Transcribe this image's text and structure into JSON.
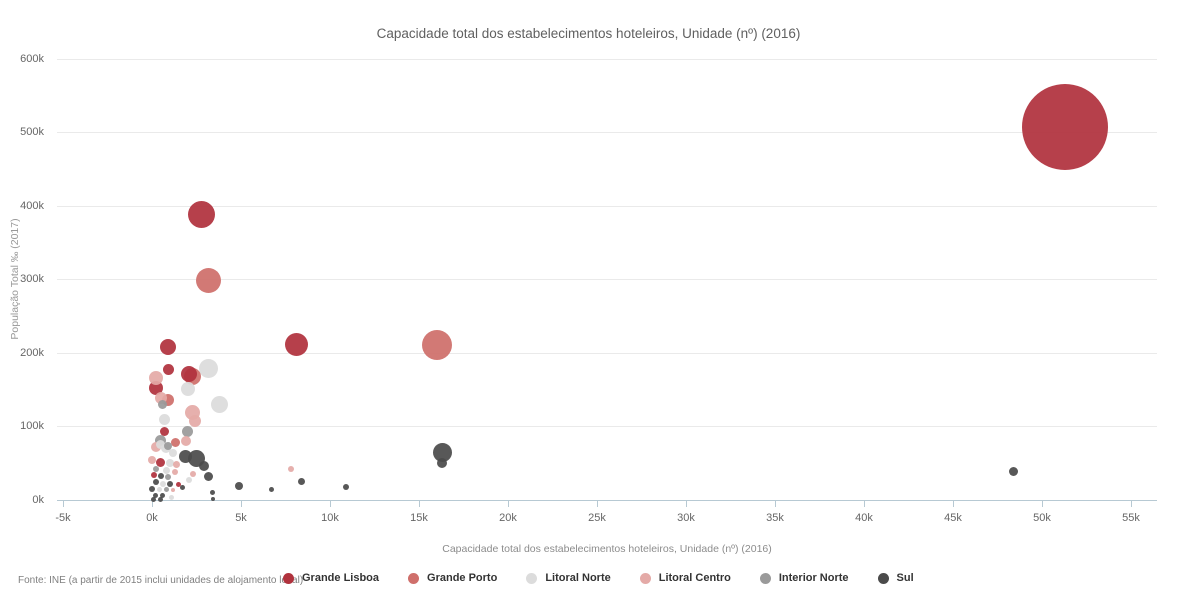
{
  "title": "Capacidade total dos estabelecimentos hoteleiros, Unidade (nº) (2016)",
  "source": "Fonte: INE (a partir de 2015 inclui unidades de alojamento local)",
  "axes": {
    "x": {
      "title": "Capacidade total dos estabelecimentos hoteleiros, Unidade (nº) (2016)",
      "tick_values": [
        -5000,
        0,
        5000,
        10000,
        15000,
        20000,
        25000,
        30000,
        35000,
        40000,
        45000,
        50000,
        55000
      ],
      "tick_labels": [
        "-5k",
        "0k",
        "5k",
        "10k",
        "15k",
        "20k",
        "25k",
        "30k",
        "35k",
        "40k",
        "45k",
        "50k",
        "55k"
      ]
    },
    "y": {
      "title": "População Total ‰ (2017)",
      "tick_values": [
        0,
        100000,
        200000,
        300000,
        400000,
        500000,
        600000
      ],
      "tick_labels": [
        "0k",
        "100k",
        "200k",
        "300k",
        "400k",
        "500k",
        "600k"
      ]
    }
  },
  "legend": [
    {
      "label": "Grande Lisboa",
      "color": "#b0323d"
    },
    {
      "label": "Grande Porto",
      "color": "#cf6f6b"
    },
    {
      "label": "Litoral Norte",
      "color": "#dcdcdc"
    },
    {
      "label": "Litoral Centro",
      "color": "#e4aaa7"
    },
    {
      "label": "Interior Norte",
      "color": "#9a9a9a"
    },
    {
      "label": "Sul",
      "color": "#4b4b4b"
    }
  ],
  "chart_data": {
    "type": "scatter",
    "title": "Capacidade total dos estabelecimentos hoteleiros, Unidade (nº) (2016)",
    "xlabel": "Capacidade total dos estabelecimentos hoteleiros, Unidade (nº) (2016)",
    "ylabel": "População Total ‰ (2017)",
    "xlim": [
      -5000,
      56500
    ],
    "ylim": [
      0,
      600000
    ],
    "grid": "horizontal-only",
    "legend_position": "bottom",
    "series": [
      {
        "name": "Grande Lisboa",
        "color": "#b0323d",
        "points": [
          [
            51300,
            507000,
            43
          ],
          [
            2800,
            388000,
            13.5
          ],
          [
            8100,
            211000,
            11.5
          ],
          [
            900,
            208000,
            8
          ],
          [
            900,
            177000,
            5.5
          ],
          [
            2100,
            171000,
            8
          ],
          [
            200,
            152000,
            7
          ],
          [
            700,
            92000,
            4.5
          ],
          [
            500,
            51000,
            4.5
          ],
          [
            100,
            33000,
            3
          ],
          [
            1500,
            20000,
            2.5
          ]
        ]
      },
      {
        "name": "Grande Porto",
        "color": "#cf6f6b",
        "points": [
          [
            3200,
            298000,
            12.5
          ],
          [
            16000,
            210000,
            15
          ],
          [
            2300,
            167000,
            8.5
          ],
          [
            900,
            135000,
            6
          ],
          [
            1300,
            78000,
            4.5
          ]
        ]
      },
      {
        "name": "Litoral Norte",
        "color": "#dcdcdc",
        "points": [
          [
            3200,
            178000,
            9.5
          ],
          [
            2000,
            151000,
            7
          ],
          [
            3800,
            129000,
            8.5
          ],
          [
            700,
            109000,
            5.5
          ],
          [
            500,
            75000,
            4.5
          ],
          [
            800,
            70000,
            5
          ],
          [
            1200,
            63000,
            4
          ],
          [
            1000,
            50000,
            4
          ],
          [
            800,
            40000,
            3.5
          ],
          [
            2100,
            26000,
            3
          ],
          [
            600,
            21000,
            3
          ],
          [
            400,
            13000,
            2.5
          ],
          [
            1100,
            3000,
            2.5
          ]
        ]
      },
      {
        "name": "Litoral Centro",
        "color": "#e4aaa7",
        "points": [
          [
            200,
            165000,
            7
          ],
          [
            500,
            138000,
            6
          ],
          [
            2300,
            119000,
            7.5
          ],
          [
            2400,
            107000,
            6
          ],
          [
            1900,
            79000,
            5
          ],
          [
            200,
            71000,
            5
          ],
          [
            0,
            54000,
            4
          ],
          [
            1400,
            48000,
            3.5
          ],
          [
            1300,
            37000,
            3
          ],
          [
            2300,
            35000,
            3
          ],
          [
            7800,
            41000,
            3
          ],
          [
            1200,
            13000,
            2
          ]
        ]
      },
      {
        "name": "Interior Norte",
        "color": "#9a9a9a",
        "points": [
          [
            600,
            129000,
            4.5
          ],
          [
            2000,
            92000,
            5.5
          ],
          [
            500,
            80000,
            5.5
          ],
          [
            900,
            73000,
            4
          ],
          [
            200,
            41000,
            3
          ],
          [
            900,
            31000,
            3
          ],
          [
            800,
            13000,
            2.5
          ]
        ]
      },
      {
        "name": "Sul",
        "color": "#4b4b4b",
        "points": [
          [
            16300,
            64000,
            9.5
          ],
          [
            16300,
            50000,
            5
          ],
          [
            48400,
            38000,
            4.5
          ],
          [
            2500,
            56000,
            8.5
          ],
          [
            1900,
            59000,
            6.5
          ],
          [
            2900,
            46000,
            5
          ],
          [
            3200,
            31000,
            4.5
          ],
          [
            4900,
            19000,
            4
          ],
          [
            8400,
            24000,
            3.5
          ],
          [
            10900,
            17000,
            3
          ],
          [
            6700,
            13000,
            2.5
          ],
          [
            3400,
            9000,
            2.5
          ],
          [
            3400,
            1000,
            2
          ],
          [
            1700,
            17000,
            2.5
          ],
          [
            0,
            14000,
            3
          ],
          [
            500,
            32000,
            3
          ],
          [
            200,
            24000,
            3
          ],
          [
            1000,
            21000,
            3
          ],
          [
            200,
            6000,
            2.5
          ],
          [
            600,
            5000,
            2.5
          ],
          [
            100,
            500,
            2.5
          ],
          [
            500,
            200,
            2.5
          ]
        ]
      }
    ]
  }
}
